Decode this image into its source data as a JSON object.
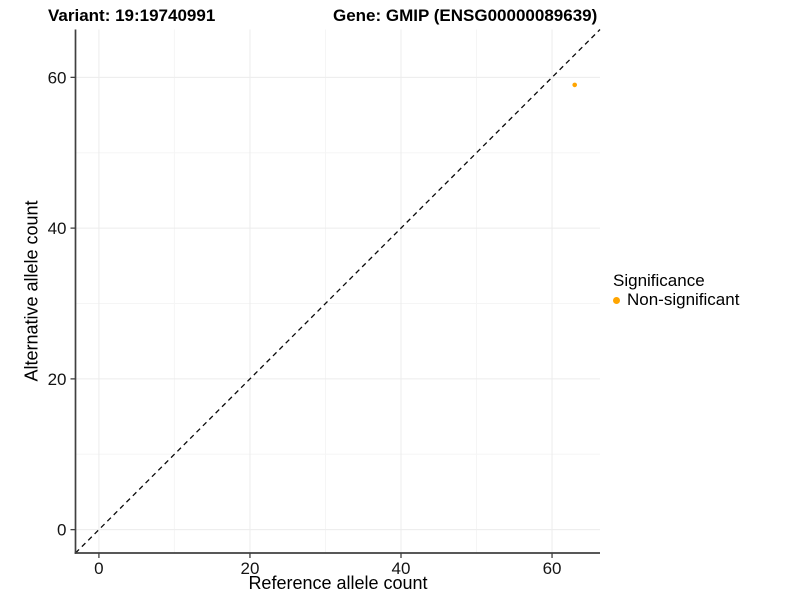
{
  "chart_data": {
    "type": "scatter",
    "titles": {
      "left": "Variant: 19:19740991",
      "right": "Gene: GMIP (ENSG00000089639)"
    },
    "xlabel": "Reference allele count",
    "ylabel": "Alternative allele count",
    "xlim": [
      -3.1,
      66.35
    ],
    "ylim": [
      -3.1,
      66.35
    ],
    "x_ticks": [
      0,
      20,
      40,
      60
    ],
    "y_ticks": [
      0,
      20,
      40,
      60
    ],
    "x_minor_ticks": [
      10,
      30,
      50
    ],
    "y_minor_ticks": [
      10,
      30,
      50
    ],
    "grid": "major+minor",
    "series": [
      {
        "name": "Non-significant",
        "color": "#FFA500",
        "point_radius": 2.3,
        "points": [
          {
            "x": 63,
            "y": 59
          }
        ]
      }
    ],
    "reference_line": {
      "type": "identity",
      "slope": 1,
      "intercept": 0,
      "style": "dashed",
      "color": "#0a0a0a"
    },
    "legend": {
      "title": "Significance",
      "position": "right",
      "items": [
        {
          "label": "Non-significant",
          "color": "#FFA500"
        }
      ]
    },
    "style": {
      "grid_major": "#ececec",
      "grid_minor": "#f5f5f5",
      "axis_line": "#404040",
      "tick_color": "#404040",
      "tick_label_color": "#141414",
      "background": "#ffffff"
    }
  }
}
